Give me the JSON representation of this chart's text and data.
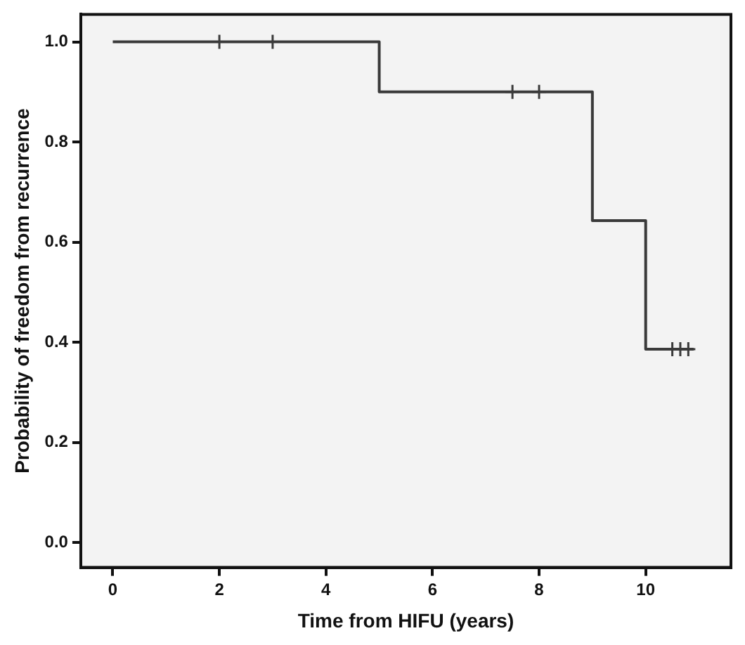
{
  "chart_data": {
    "type": "step",
    "xlabel": "Time from HIFU (years)",
    "ylabel": "Probability of freedom from recurrence",
    "series": [
      {
        "color": "#3a3a3a",
        "x": [
          0,
          5,
          9,
          10,
          10.9
        ],
        "values": [
          1,
          0.9,
          0.643,
          0.386,
          0.386
        ],
        "marker": "none"
      },
      {
        "type": "scatter",
        "color": "#3a3a3a",
        "x": [
          2,
          3,
          7.5,
          8,
          10.5,
          10.65,
          10.8
        ],
        "values": [
          1,
          1,
          0.9,
          0.9,
          0.386,
          0.386,
          0.386
        ],
        "marker": "cross"
      }
    ],
    "xlim": [
      -0.6,
      11.6
    ],
    "xticks": [
      0,
      2,
      4,
      6,
      8,
      10
    ],
    "ylim": [
      -0.05,
      1.055
    ],
    "yticks": [
      {
        "value": 0,
        "label": "0.0"
      },
      0.2,
      0.4,
      0.6,
      0.8,
      {
        "value": 1,
        "label": "1.0"
      }
    ],
    "grid": false,
    "legend": false
  }
}
